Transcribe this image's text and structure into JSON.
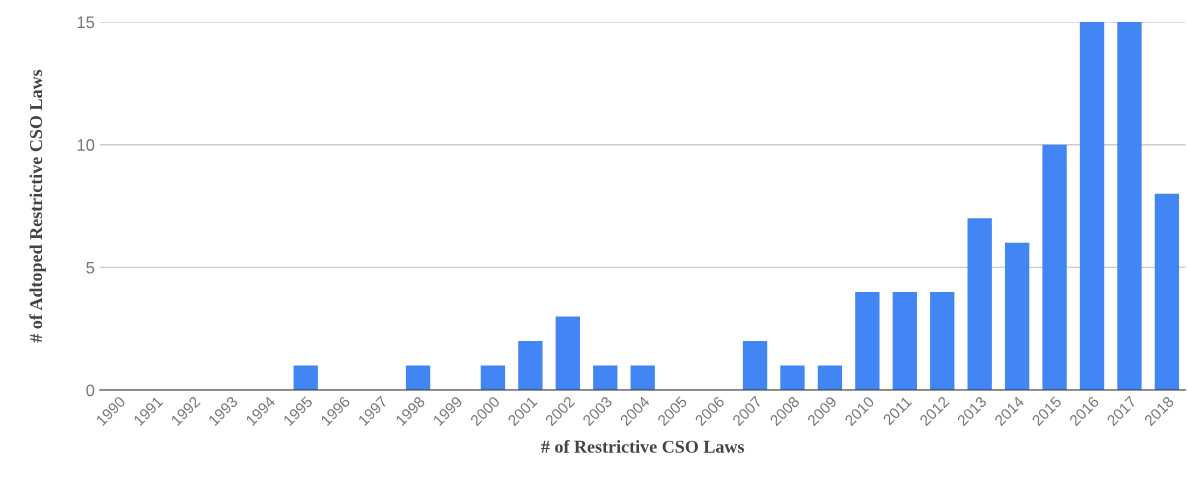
{
  "chart_data": {
    "type": "bar",
    "xlabel": "# of Restrictive CSO Laws",
    "ylabel": "# of Adtoped Restrictive CSO Laws",
    "categories": [
      "1990",
      "1991",
      "1992",
      "1993",
      "1994",
      "1995",
      "1996",
      "1997",
      "1998",
      "1999",
      "2000",
      "2001",
      "2002",
      "2003",
      "2004",
      "2005",
      "2006",
      "2007",
      "2008",
      "2009",
      "2010",
      "2011",
      "2012",
      "2013",
      "2014",
      "2015",
      "2016",
      "2017",
      "2018"
    ],
    "values": [
      0,
      0,
      0,
      0,
      0,
      1,
      0,
      0,
      1,
      0,
      1,
      2,
      3,
      1,
      1,
      0,
      0,
      2,
      1,
      1,
      4,
      4,
      4,
      7,
      6,
      10,
      15,
      15,
      8
    ],
    "color": "#4285f4",
    "ylim": [
      0,
      15
    ],
    "yticks": [
      0,
      5,
      10,
      15
    ],
    "grid": "y"
  }
}
